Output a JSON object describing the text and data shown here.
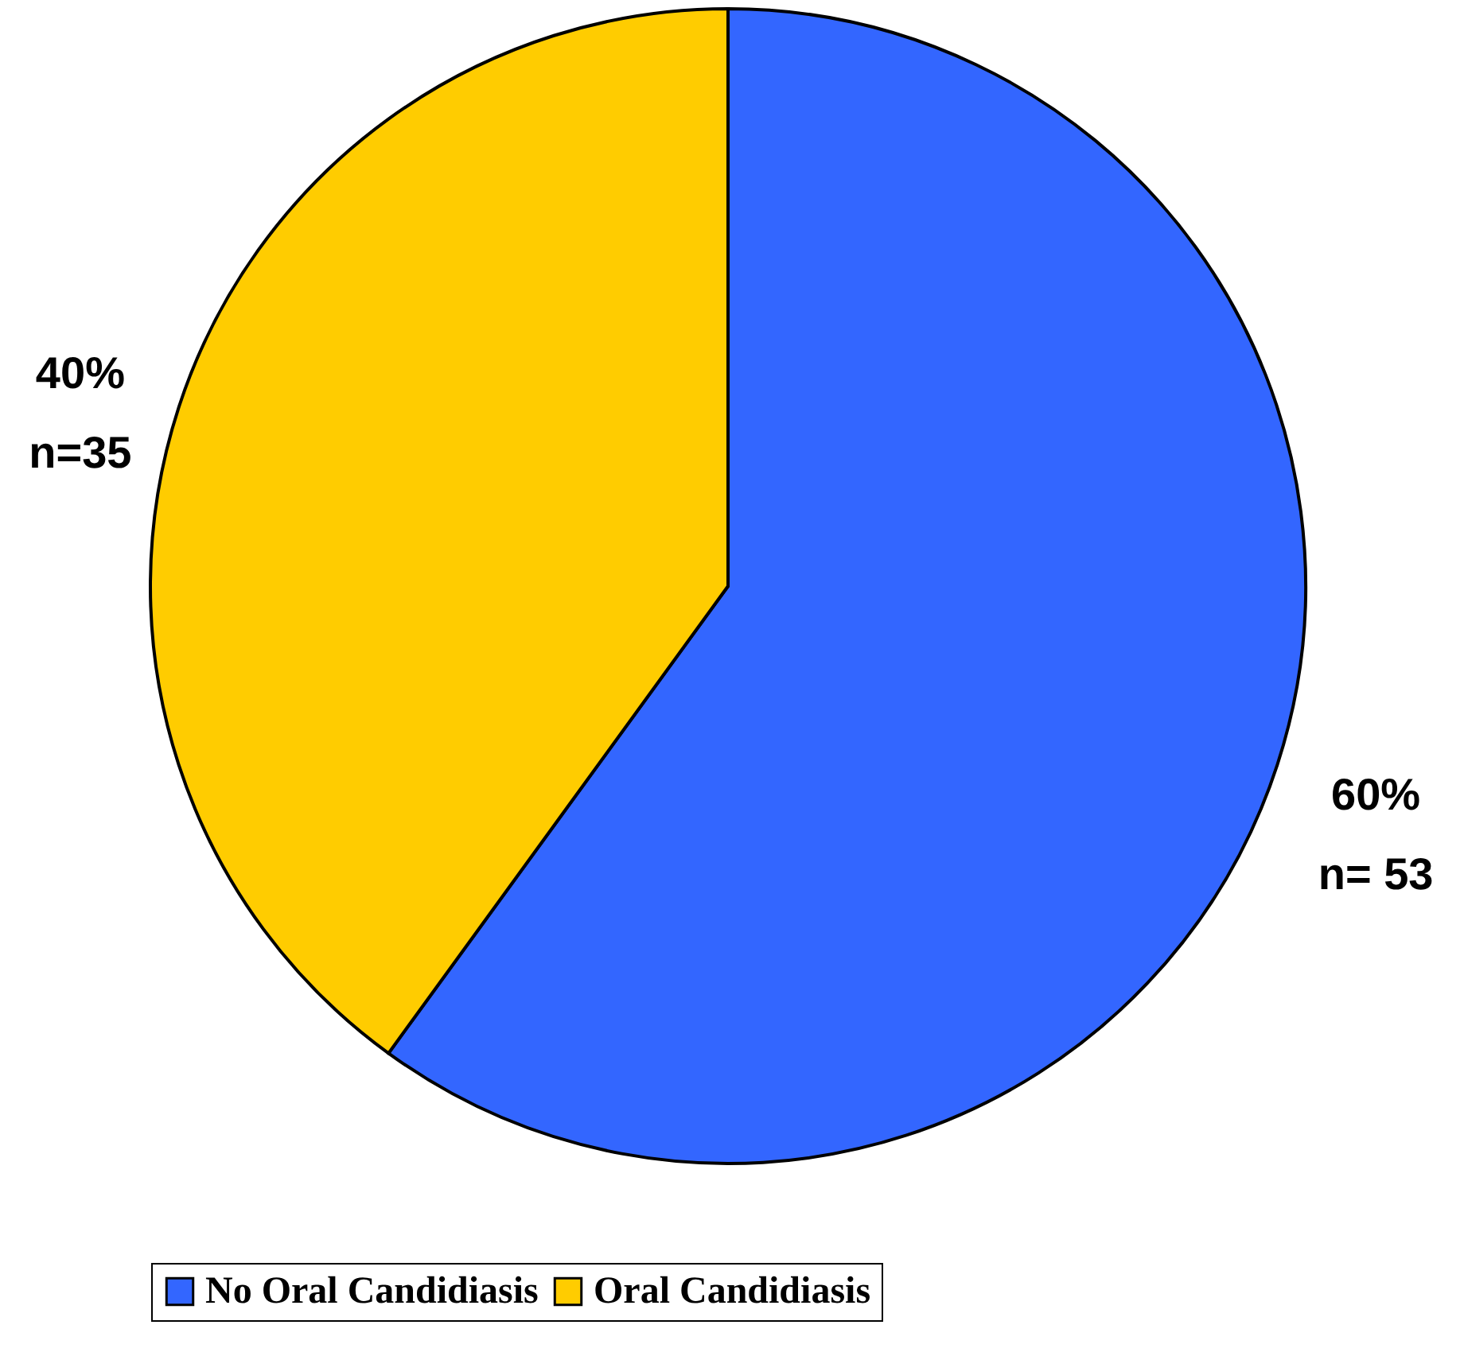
{
  "chart_data": {
    "type": "pie",
    "categories": [
      "No Oral Candidiasis",
      "Oral Candidiasis"
    ],
    "values": [
      60,
      40
    ],
    "colors": [
      "#3366ff",
      "#ffcc00"
    ],
    "value_labels": [
      "60%\nn= 53",
      "40%\nn=35"
    ],
    "legend": "bottom"
  }
}
